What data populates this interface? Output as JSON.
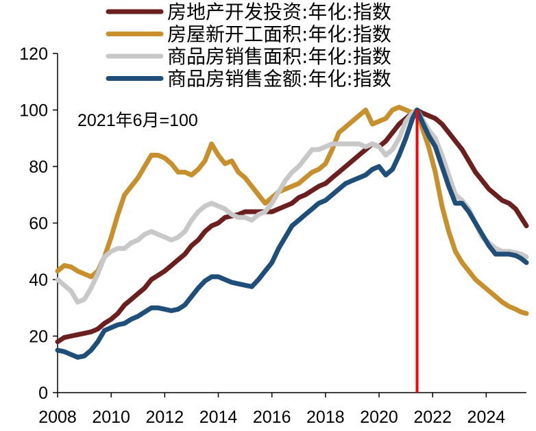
{
  "chart_data": {
    "type": "line",
    "title": "",
    "xlabel": "",
    "ylabel": "",
    "xlim": [
      2008.0,
      2025.5
    ],
    "ylim": [
      0,
      120
    ],
    "x_ticks": [
      "2008",
      "2010",
      "2012",
      "2014",
      "2016",
      "2018",
      "2020",
      "2022",
      "2024"
    ],
    "y_ticks": [
      "0",
      "20",
      "40",
      "60",
      "80",
      "100",
      "120"
    ],
    "grid": false,
    "legend_position": "top",
    "annotation": "2021年6月=100",
    "reference_line": {
      "x": 2021.42,
      "color": "#ff0000"
    },
    "series": [
      {
        "name": "房地产开发投资:年化:指数",
        "color": "#6b1f1f",
        "points": [
          [
            2008.0,
            18
          ],
          [
            2008.25,
            19.5
          ],
          [
            2008.5,
            20
          ],
          [
            2008.75,
            20.5
          ],
          [
            2009.0,
            21
          ],
          [
            2009.25,
            21.5
          ],
          [
            2009.5,
            22.5
          ],
          [
            2009.75,
            24.5
          ],
          [
            2010.0,
            26
          ],
          [
            2010.25,
            28
          ],
          [
            2010.5,
            31
          ],
          [
            2010.75,
            33
          ],
          [
            2011.0,
            35
          ],
          [
            2011.25,
            37
          ],
          [
            2011.5,
            40
          ],
          [
            2011.75,
            41.5
          ],
          [
            2012.0,
            43
          ],
          [
            2012.25,
            45
          ],
          [
            2012.5,
            47
          ],
          [
            2012.75,
            49
          ],
          [
            2013.0,
            52
          ],
          [
            2013.25,
            54
          ],
          [
            2013.5,
            57
          ],
          [
            2013.75,
            59
          ],
          [
            2014.0,
            60
          ],
          [
            2014.25,
            62
          ],
          [
            2014.5,
            62.5
          ],
          [
            2014.75,
            63
          ],
          [
            2015.0,
            64
          ],
          [
            2015.25,
            64
          ],
          [
            2015.5,
            64
          ],
          [
            2015.75,
            64
          ],
          [
            2016.0,
            64
          ],
          [
            2016.25,
            65
          ],
          [
            2016.5,
            66
          ],
          [
            2016.75,
            67
          ],
          [
            2017.0,
            69
          ],
          [
            2017.25,
            70
          ],
          [
            2017.5,
            71.5
          ],
          [
            2017.75,
            73
          ],
          [
            2018.0,
            74
          ],
          [
            2018.25,
            76
          ],
          [
            2018.5,
            78
          ],
          [
            2018.75,
            80
          ],
          [
            2019.0,
            82
          ],
          [
            2019.25,
            84
          ],
          [
            2019.5,
            86
          ],
          [
            2019.75,
            88
          ],
          [
            2020.0,
            87
          ],
          [
            2020.25,
            89
          ],
          [
            2020.5,
            92
          ],
          [
            2020.75,
            95
          ],
          [
            2021.0,
            97
          ],
          [
            2021.25,
            99
          ],
          [
            2021.42,
            100
          ],
          [
            2021.6,
            99
          ],
          [
            2021.85,
            98
          ],
          [
            2022.1,
            97
          ],
          [
            2022.35,
            95
          ],
          [
            2022.6,
            92
          ],
          [
            2022.85,
            89
          ],
          [
            2023.1,
            86
          ],
          [
            2023.35,
            82
          ],
          [
            2023.6,
            78
          ],
          [
            2023.85,
            75
          ],
          [
            2024.1,
            72
          ],
          [
            2024.35,
            70
          ],
          [
            2024.6,
            68
          ],
          [
            2024.85,
            67
          ],
          [
            2025.1,
            65
          ],
          [
            2025.3,
            62
          ],
          [
            2025.5,
            59
          ]
        ]
      },
      {
        "name": "房屋新开工面积:年化:指数",
        "color": "#c8902d",
        "points": [
          [
            2008.0,
            43
          ],
          [
            2008.25,
            45
          ],
          [
            2008.5,
            44.5
          ],
          [
            2008.75,
            43
          ],
          [
            2009.0,
            42
          ],
          [
            2009.25,
            41
          ],
          [
            2009.5,
            43
          ],
          [
            2009.75,
            48
          ],
          [
            2010.0,
            55
          ],
          [
            2010.25,
            63
          ],
          [
            2010.5,
            70
          ],
          [
            2010.75,
            73
          ],
          [
            2011.0,
            76
          ],
          [
            2011.25,
            80
          ],
          [
            2011.5,
            84
          ],
          [
            2011.75,
            84
          ],
          [
            2012.0,
            83
          ],
          [
            2012.25,
            81
          ],
          [
            2012.5,
            78
          ],
          [
            2012.75,
            78
          ],
          [
            2013.0,
            77
          ],
          [
            2013.25,
            79
          ],
          [
            2013.5,
            82
          ],
          [
            2013.75,
            88
          ],
          [
            2014.0,
            84
          ],
          [
            2014.25,
            81
          ],
          [
            2014.5,
            82
          ],
          [
            2014.75,
            78
          ],
          [
            2015.0,
            76
          ],
          [
            2015.25,
            73
          ],
          [
            2015.5,
            70
          ],
          [
            2015.75,
            67
          ],
          [
            2016.0,
            69
          ],
          [
            2016.25,
            71
          ],
          [
            2016.5,
            72
          ],
          [
            2016.75,
            73
          ],
          [
            2017.0,
            74
          ],
          [
            2017.25,
            76
          ],
          [
            2017.5,
            78
          ],
          [
            2017.75,
            79
          ],
          [
            2018.0,
            81
          ],
          [
            2018.25,
            86
          ],
          [
            2018.5,
            92
          ],
          [
            2018.75,
            94
          ],
          [
            2019.0,
            96
          ],
          [
            2019.25,
            98
          ],
          [
            2019.5,
            100
          ],
          [
            2019.75,
            95
          ],
          [
            2020.0,
            96
          ],
          [
            2020.25,
            97
          ],
          [
            2020.5,
            100
          ],
          [
            2020.75,
            101
          ],
          [
            2021.0,
            100
          ],
          [
            2021.25,
            99
          ],
          [
            2021.42,
            100
          ],
          [
            2021.6,
            94
          ],
          [
            2021.85,
            87
          ],
          [
            2022.1,
            78
          ],
          [
            2022.35,
            66
          ],
          [
            2022.6,
            57
          ],
          [
            2022.85,
            50
          ],
          [
            2023.1,
            46
          ],
          [
            2023.35,
            43
          ],
          [
            2023.6,
            40
          ],
          [
            2023.85,
            38
          ],
          [
            2024.1,
            36
          ],
          [
            2024.35,
            34
          ],
          [
            2024.6,
            32
          ],
          [
            2024.85,
            30.5
          ],
          [
            2025.1,
            29.5
          ],
          [
            2025.3,
            28.5
          ],
          [
            2025.5,
            28
          ]
        ]
      },
      {
        "name": "商品房销售面积:年化:指数",
        "color": "#c8c8c8",
        "points": [
          [
            2008.0,
            40
          ],
          [
            2008.25,
            38
          ],
          [
            2008.5,
            36
          ],
          [
            2008.75,
            32
          ],
          [
            2009.0,
            33
          ],
          [
            2009.25,
            37
          ],
          [
            2009.5,
            42
          ],
          [
            2009.75,
            48
          ],
          [
            2010.0,
            50
          ],
          [
            2010.25,
            51
          ],
          [
            2010.5,
            51
          ],
          [
            2010.75,
            53
          ],
          [
            2011.0,
            54
          ],
          [
            2011.25,
            56
          ],
          [
            2011.5,
            57
          ],
          [
            2011.75,
            56
          ],
          [
            2012.0,
            55
          ],
          [
            2012.25,
            54
          ],
          [
            2012.5,
            55
          ],
          [
            2012.75,
            57
          ],
          [
            2013.0,
            61
          ],
          [
            2013.25,
            64
          ],
          [
            2013.5,
            66
          ],
          [
            2013.75,
            67
          ],
          [
            2014.0,
            66
          ],
          [
            2014.25,
            65
          ],
          [
            2014.5,
            63
          ],
          [
            2014.75,
            62
          ],
          [
            2015.0,
            62
          ],
          [
            2015.25,
            61
          ],
          [
            2015.5,
            63
          ],
          [
            2015.75,
            64
          ],
          [
            2016.0,
            67
          ],
          [
            2016.25,
            71
          ],
          [
            2016.5,
            75
          ],
          [
            2016.75,
            78
          ],
          [
            2017.0,
            80
          ],
          [
            2017.25,
            83
          ],
          [
            2017.5,
            86
          ],
          [
            2017.75,
            86
          ],
          [
            2018.0,
            87
          ],
          [
            2018.25,
            88
          ],
          [
            2018.5,
            88
          ],
          [
            2018.75,
            88
          ],
          [
            2019.0,
            88
          ],
          [
            2019.25,
            88
          ],
          [
            2019.5,
            87
          ],
          [
            2019.75,
            88
          ],
          [
            2020.0,
            87
          ],
          [
            2020.25,
            84
          ],
          [
            2020.5,
            86
          ],
          [
            2020.75,
            90
          ],
          [
            2021.0,
            96
          ],
          [
            2021.25,
            99
          ],
          [
            2021.42,
            100
          ],
          [
            2021.6,
            97
          ],
          [
            2021.85,
            93
          ],
          [
            2022.1,
            90
          ],
          [
            2022.35,
            84
          ],
          [
            2022.6,
            77
          ],
          [
            2022.85,
            70
          ],
          [
            2023.1,
            68
          ],
          [
            2023.35,
            65
          ],
          [
            2023.6,
            60
          ],
          [
            2023.85,
            55
          ],
          [
            2024.1,
            53
          ],
          [
            2024.35,
            51
          ],
          [
            2024.6,
            50
          ],
          [
            2024.85,
            50
          ],
          [
            2025.1,
            49.5
          ],
          [
            2025.3,
            49
          ],
          [
            2025.5,
            48
          ]
        ]
      },
      {
        "name": "商品房销售金额:年化:指数",
        "color": "#1f4e79",
        "points": [
          [
            2008.0,
            15
          ],
          [
            2008.25,
            14.5
          ],
          [
            2008.5,
            13.5
          ],
          [
            2008.75,
            12.5
          ],
          [
            2009.0,
            13
          ],
          [
            2009.25,
            15
          ],
          [
            2009.5,
            18
          ],
          [
            2009.75,
            22
          ],
          [
            2010.0,
            23
          ],
          [
            2010.25,
            24
          ],
          [
            2010.5,
            24.5
          ],
          [
            2010.75,
            26
          ],
          [
            2011.0,
            27
          ],
          [
            2011.25,
            28.5
          ],
          [
            2011.5,
            30
          ],
          [
            2011.75,
            30
          ],
          [
            2012.0,
            29.5
          ],
          [
            2012.25,
            29
          ],
          [
            2012.5,
            29.5
          ],
          [
            2012.75,
            31
          ],
          [
            2013.0,
            34
          ],
          [
            2013.25,
            37
          ],
          [
            2013.5,
            39.5
          ],
          [
            2013.75,
            41
          ],
          [
            2014.0,
            41
          ],
          [
            2014.25,
            40
          ],
          [
            2014.5,
            39
          ],
          [
            2014.75,
            38.5
          ],
          [
            2015.0,
            38
          ],
          [
            2015.25,
            37.5
          ],
          [
            2015.5,
            40
          ],
          [
            2015.75,
            43
          ],
          [
            2016.0,
            46
          ],
          [
            2016.25,
            51
          ],
          [
            2016.5,
            55
          ],
          [
            2016.75,
            59
          ],
          [
            2017.0,
            61
          ],
          [
            2017.25,
            63
          ],
          [
            2017.5,
            65
          ],
          [
            2017.75,
            67
          ],
          [
            2018.0,
            68
          ],
          [
            2018.25,
            70
          ],
          [
            2018.5,
            72
          ],
          [
            2018.75,
            74
          ],
          [
            2019.0,
            75
          ],
          [
            2019.25,
            76
          ],
          [
            2019.5,
            77
          ],
          [
            2019.75,
            79
          ],
          [
            2020.0,
            80
          ],
          [
            2020.25,
            77
          ],
          [
            2020.5,
            79
          ],
          [
            2020.75,
            84
          ],
          [
            2021.0,
            90
          ],
          [
            2021.25,
            97
          ],
          [
            2021.42,
            100
          ],
          [
            2021.6,
            96
          ],
          [
            2021.85,
            91
          ],
          [
            2022.1,
            87
          ],
          [
            2022.35,
            80
          ],
          [
            2022.6,
            73
          ],
          [
            2022.85,
            67
          ],
          [
            2023.1,
            67
          ],
          [
            2023.35,
            64
          ],
          [
            2023.6,
            60
          ],
          [
            2023.85,
            56
          ],
          [
            2024.1,
            52
          ],
          [
            2024.35,
            49
          ],
          [
            2024.6,
            49
          ],
          [
            2024.85,
            49
          ],
          [
            2025.1,
            48.5
          ],
          [
            2025.3,
            47.5
          ],
          [
            2025.5,
            46
          ]
        ]
      }
    ]
  }
}
